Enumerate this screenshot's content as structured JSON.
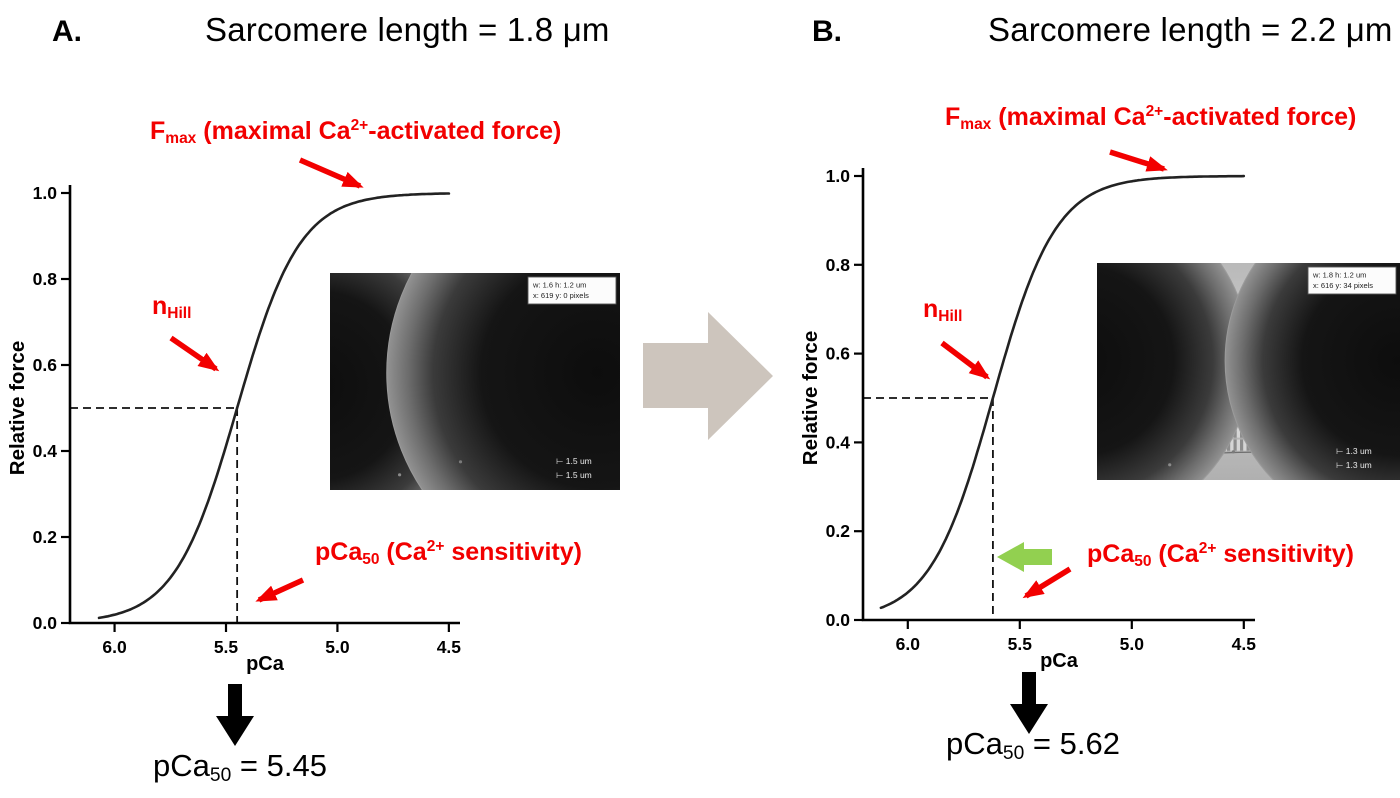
{
  "figure": {
    "panels": [
      {
        "label": "A.",
        "title": "Sarcomere length = 1.8 μm",
        "result": {
          "pre": "pCa",
          "sub": "50",
          "post": " = 5.45"
        },
        "micrograph": {
          "info_line1": "w: 1.6  h: 1.2  um",
          "info_line2": "x: 619  y: 0  pixels",
          "scale_line1": "⊢ 1.5 um",
          "scale_line2": "⊢ 1.5 um"
        }
      },
      {
        "label": "B.",
        "title": "Sarcomere length = 2.2 μm",
        "result": {
          "pre": "pCa",
          "sub": "50",
          "post": " = 5.62"
        },
        "micrograph": {
          "info_line1": "w: 1.8  h: 1.2  um",
          "info_line2": "x: 616  y: 34  pixels",
          "scale_line1": "⊢ 1.3 um",
          "scale_line2": "⊢ 1.3 um"
        }
      }
    ],
    "annotations": {
      "fmax": {
        "p1": "F",
        "sub": "max",
        "p2": " (maximal Ca",
        "sup": "2+",
        "p3": "-activated force)"
      },
      "nhill": {
        "p1": "n",
        "sub": "Hill"
      },
      "pca50": {
        "p1": "pCa",
        "sub": "50",
        "p2": " (Ca",
        "sup": "2+",
        "p3": " sensitivity)"
      }
    },
    "colors": {
      "annotation_red": "#f20000",
      "shift_arrow_green": "#92d050",
      "transition_arrow_beige": "#cdc5bd",
      "curve_black": "#222222"
    }
  },
  "chart_data": [
    {
      "type": "line",
      "panel": "A",
      "title": "Sarcomere length = 1.8 μm",
      "xlabel": "pCa",
      "ylabel": "Relative force",
      "x_ticks": [
        6.0,
        5.5,
        5.0,
        4.5
      ],
      "x_axis_reversed": true,
      "xlim": [
        6.2,
        4.45
      ],
      "y_ticks": [
        0.0,
        0.2,
        0.4,
        0.6,
        0.8,
        1.0
      ],
      "ylim": [
        0.0,
        1.0
      ],
      "grid": false,
      "curve": {
        "model": "Hill",
        "equation": "F = 1 / (1 + 10^(n_Hill*(pCa - pCa50)))",
        "pCa50": 5.45,
        "n_hill": 3.1,
        "pca_start": 6.07,
        "pca_end": 4.5
      },
      "guides": {
        "half_max_force": 0.5,
        "pCa50": 5.45
      },
      "annotations": [
        "Fmax (maximal Ca2+-activated force)",
        "nHill",
        "pCa50 (Ca2+ sensitivity)"
      ],
      "result_label": "pCa50 = 5.45"
    },
    {
      "type": "line",
      "panel": "B",
      "title": "Sarcomere length = 2.2 μm",
      "xlabel": "pCa",
      "ylabel": "Relative force",
      "x_ticks": [
        6.0,
        5.5,
        5.0,
        4.5
      ],
      "x_axis_reversed": true,
      "xlim": [
        6.2,
        4.45
      ],
      "y_ticks": [
        0.0,
        0.2,
        0.4,
        0.6,
        0.8,
        1.0
      ],
      "ylim": [
        0.0,
        1.0
      ],
      "grid": false,
      "curve": {
        "model": "Hill",
        "equation": "F = 1 / (1 + 10^(n_Hill*(pCa - pCa50)))",
        "pCa50": 5.62,
        "n_hill": 3.1,
        "pca_start": 6.12,
        "pca_end": 4.5
      },
      "guides": {
        "half_max_force": 0.5,
        "pCa50": 5.62
      },
      "annotations": [
        "Fmax (maximal Ca2+-activated force)",
        "nHill",
        "pCa50 (Ca2+ sensitivity)",
        "leftward shift arrow"
      ],
      "result_label": "pCa50 = 5.62"
    }
  ]
}
